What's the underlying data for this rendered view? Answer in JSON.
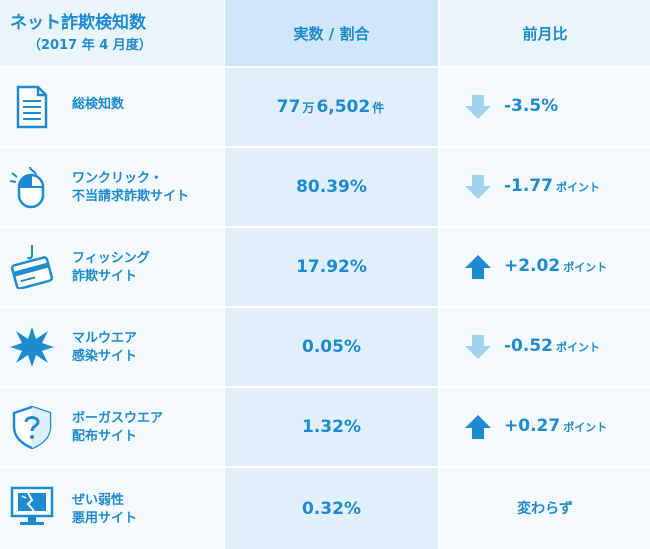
{
  "header": {
    "title": "ネット詐欺検知数",
    "subtitle": "（2017 年 4 月度）",
    "col_value": "実数 / 割合",
    "col_change": "前月比"
  },
  "rows": [
    {
      "label1": "総検知数",
      "label2": "",
      "value_main": "77",
      "value_unit": "万",
      "value_rest": "6,502",
      "value_unit2": "件",
      "change": "-3.5%",
      "change_unit": "",
      "direction": "down",
      "icon": "document-icon"
    },
    {
      "label1": "ワンクリック・",
      "label2": "不当請求詐欺サイト",
      "value_main": "80.39%",
      "value_unit": "",
      "value_rest": "",
      "value_unit2": "",
      "change": "-1.77",
      "change_unit": "ポイント",
      "direction": "down",
      "icon": "mouse-icon"
    },
    {
      "label1": "フィッシング",
      "label2": "詐欺サイト",
      "value_main": "17.92%",
      "value_unit": "",
      "value_rest": "",
      "value_unit2": "",
      "change": "+2.02",
      "change_unit": "ポイント",
      "direction": "up",
      "icon": "fishing-card-icon"
    },
    {
      "label1": "マルウエア",
      "label2": "感染サイト",
      "value_main": "0.05%",
      "value_unit": "",
      "value_rest": "",
      "value_unit2": "",
      "change": "-0.52",
      "change_unit": "ポイント",
      "direction": "down",
      "icon": "virus-burst-icon"
    },
    {
      "label1": "ボーガスウエア",
      "label2": "配布サイト",
      "value_main": "1.32%",
      "value_unit": "",
      "value_rest": "",
      "value_unit2": "",
      "change": "+0.27",
      "change_unit": "ポイント",
      "direction": "up",
      "icon": "shield-question-icon"
    },
    {
      "label1": "ぜい弱性",
      "label2": "悪用サイト",
      "value_main": "0.32%",
      "value_unit": "",
      "value_rest": "",
      "value_unit2": "",
      "change": "変わらず",
      "change_unit": "",
      "direction": "none",
      "icon": "broken-monitor-icon"
    }
  ],
  "colors": {
    "text": "#1e8bd0",
    "arrow_up": "#1e8bd0",
    "arrow_down": "#9fd3ee"
  }
}
